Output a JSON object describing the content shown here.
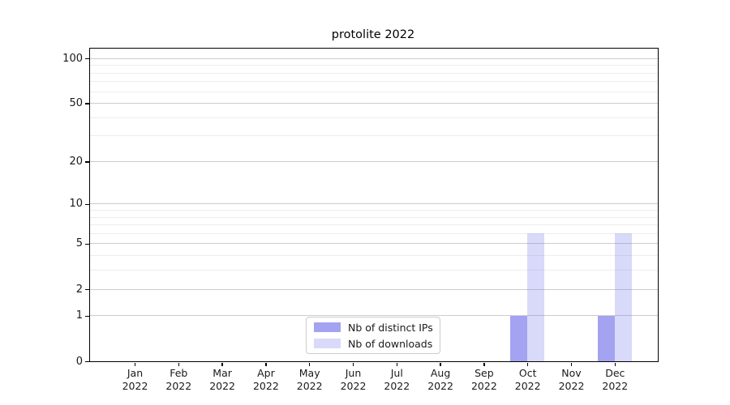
{
  "figure": {
    "background": "#ffffff",
    "axis_color": "#000000",
    "major_grid_color": "#cccccc",
    "minor_grid_color": "#ededed"
  },
  "chart_data": {
    "type": "bar",
    "title": "protolite 2022",
    "categories": [
      "Jan",
      "Feb",
      "Mar",
      "Apr",
      "May",
      "Jun",
      "Jul",
      "Aug",
      "Sep",
      "Oct",
      "Nov",
      "Dec"
    ],
    "category_year": "2022",
    "series": [
      {
        "name": "Nb of distinct IPs",
        "color": "#8080ec",
        "opacity": 0.72,
        "values": [
          0,
          0,
          0,
          0,
          0,
          0,
          0,
          0,
          0,
          1,
          0,
          1
        ]
      },
      {
        "name": "Nb of downloads",
        "color": "#8080ec",
        "opacity": 0.3,
        "values": [
          0,
          0,
          0,
          0,
          0,
          0,
          0,
          0,
          0,
          6,
          0,
          6
        ]
      }
    ],
    "y_axis": {
      "scale": "log1p",
      "tick_values": [
        0,
        1,
        2,
        5,
        10,
        20,
        50,
        100
      ],
      "minor_grid_values": [
        3,
        4,
        6,
        7,
        8,
        9,
        30,
        40,
        60,
        70,
        80,
        90
      ],
      "range_max": 118
    },
    "grid": true,
    "legend_position": "bottom-center"
  }
}
